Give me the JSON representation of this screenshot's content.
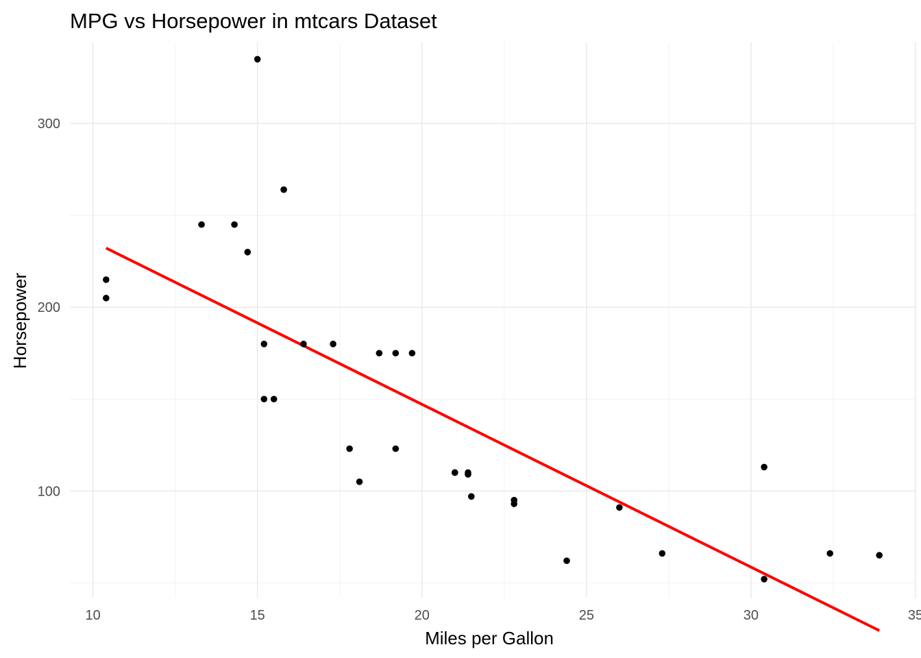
{
  "chart_data": {
    "type": "scatter",
    "title": "MPG vs Horsepower in mtcars Dataset",
    "xlabel": "Miles per Gallon",
    "ylabel": "Horsepower",
    "xlim": [
      9.3,
      35
    ],
    "ylim": [
      41.9,
      344.1
    ],
    "x_ticks": [
      10,
      15,
      20,
      25,
      30,
      35
    ],
    "y_ticks": [
      100,
      200,
      300
    ],
    "grid": true,
    "legend": "none",
    "point_color": "#000000",
    "points": [
      {
        "x": 21.0,
        "y": 110
      },
      {
        "x": 21.0,
        "y": 110
      },
      {
        "x": 22.8,
        "y": 93
      },
      {
        "x": 21.4,
        "y": 110
      },
      {
        "x": 18.7,
        "y": 175
      },
      {
        "x": 18.1,
        "y": 105
      },
      {
        "x": 14.3,
        "y": 245
      },
      {
        "x": 24.4,
        "y": 62
      },
      {
        "x": 22.8,
        "y": 95
      },
      {
        "x": 19.2,
        "y": 123
      },
      {
        "x": 17.8,
        "y": 123
      },
      {
        "x": 16.4,
        "y": 180
      },
      {
        "x": 17.3,
        "y": 180
      },
      {
        "x": 15.2,
        "y": 180
      },
      {
        "x": 10.4,
        "y": 205
      },
      {
        "x": 10.4,
        "y": 215
      },
      {
        "x": 14.7,
        "y": 230
      },
      {
        "x": 32.4,
        "y": 66
      },
      {
        "x": 30.4,
        "y": 52
      },
      {
        "x": 33.9,
        "y": 65
      },
      {
        "x": 21.5,
        "y": 97
      },
      {
        "x": 15.5,
        "y": 150
      },
      {
        "x": 15.2,
        "y": 150
      },
      {
        "x": 13.3,
        "y": 245
      },
      {
        "x": 19.2,
        "y": 175
      },
      {
        "x": 27.3,
        "y": 66
      },
      {
        "x": 26.0,
        "y": 91
      },
      {
        "x": 30.4,
        "y": 113
      },
      {
        "x": 15.8,
        "y": 264
      },
      {
        "x": 19.7,
        "y": 175
      },
      {
        "x": 15.0,
        "y": 335
      },
      {
        "x": 21.4,
        "y": 109
      }
    ],
    "trend_line": {
      "color": "#ff0000",
      "points": [
        {
          "x": 10.4,
          "y": 232.2
        },
        {
          "x": 33.9,
          "y": 24.0
        }
      ]
    }
  }
}
